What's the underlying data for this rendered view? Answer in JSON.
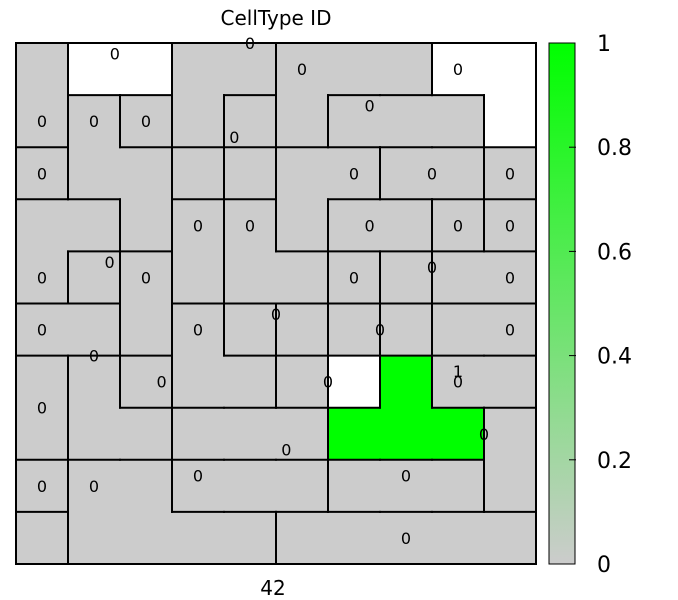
{
  "chart_data": {
    "type": "heatmap",
    "title": "CellType ID",
    "xlabel": "42",
    "grid_cols": 10,
    "grid_rows": 10,
    "cells": [
      {
        "label": "0",
        "lx": 1.9,
        "ly": 0.2,
        "value": 0,
        "color": "#ffffff",
        "squares": [
          [
            1,
            0
          ],
          [
            2,
            0
          ]
        ]
      },
      {
        "label": "0",
        "lx": 8.5,
        "ly": 0.5,
        "value": 0,
        "color": "#ffffff",
        "squares": [
          [
            8,
            0
          ],
          [
            9,
            0
          ],
          [
            9,
            1
          ]
        ]
      },
      {
        "label": "0",
        "lx": 4.5,
        "ly": 0.0,
        "value": 0,
        "color": "#cccccc",
        "squares": [
          [
            3,
            0
          ],
          [
            4,
            0
          ],
          [
            3,
            1
          ],
          [
            4,
            2
          ]
        ]
      },
      {
        "label": "0",
        "lx": 5.5,
        "ly": 0.5,
        "value": 0,
        "color": "#cccccc",
        "squares": [
          [
            5,
            0
          ],
          [
            6,
            0
          ],
          [
            7,
            0
          ],
          [
            5,
            1
          ]
        ]
      },
      {
        "label": "0",
        "lx": 6.8,
        "ly": 1.2,
        "value": 0,
        "color": "#cccccc",
        "squares": [
          [
            6,
            1
          ],
          [
            7,
            1
          ],
          [
            8,
            1
          ]
        ]
      },
      {
        "label": "0",
        "lx": 0.5,
        "ly": 1.5,
        "value": 0,
        "color": "#cccccc",
        "squares": [
          [
            0,
            0
          ],
          [
            0,
            1
          ]
        ]
      },
      {
        "label": "0",
        "lx": 1.5,
        "ly": 1.5,
        "value": 0,
        "color": "#cccccc",
        "squares": [
          [
            1,
            1
          ],
          [
            1,
            2
          ],
          [
            2,
            3
          ],
          [
            2,
            2
          ]
        ]
      },
      {
        "label": "0",
        "lx": 2.5,
        "ly": 1.5,
        "value": 0,
        "color": "#cccccc",
        "squares": [
          [
            2,
            1
          ],
          [
            3,
            2
          ]
        ]
      },
      {
        "label": "0",
        "lx": 4.2,
        "ly": 1.8,
        "value": 0,
        "color": "#cccccc",
        "squares": [
          [
            4,
            1
          ]
        ]
      },
      {
        "label": "0",
        "lx": 0.5,
        "ly": 2.5,
        "value": 0,
        "color": "#cccccc",
        "squares": [
          [
            0,
            2
          ]
        ]
      },
      {
        "label": "0",
        "lx": 6.5,
        "ly": 2.5,
        "value": 0,
        "color": "#cccccc",
        "squares": [
          [
            5,
            2
          ],
          [
            6,
            2
          ],
          [
            5,
            3
          ]
        ]
      },
      {
        "label": "0",
        "lx": 8.0,
        "ly": 2.5,
        "value": 0,
        "color": "#cccccc",
        "squares": [
          [
            7,
            2
          ],
          [
            8,
            2
          ]
        ]
      },
      {
        "label": "0",
        "lx": 9.5,
        "ly": 2.5,
        "value": 0,
        "color": "#cccccc",
        "squares": [
          [
            9,
            2
          ]
        ]
      },
      {
        "label": "0",
        "lx": 0.5,
        "ly": 4.5,
        "value": 0,
        "color": "#cccccc",
        "squares": [
          [
            0,
            3
          ],
          [
            1,
            3
          ],
          [
            0,
            4
          ]
        ]
      },
      {
        "label": "0",
        "lx": 3.5,
        "ly": 3.5,
        "value": 0,
        "color": "#cccccc",
        "squares": [
          [
            3,
            3
          ],
          [
            3,
            4
          ]
        ]
      },
      {
        "label": "0",
        "lx": 4.5,
        "ly": 3.5,
        "value": 0,
        "color": "#cccccc",
        "squares": [
          [
            4,
            3
          ],
          [
            4,
            4
          ],
          [
            5,
            4
          ]
        ]
      },
      {
        "label": "0",
        "lx": 6.8,
        "ly": 3.5,
        "value": 0,
        "color": "#cccccc",
        "squares": [
          [
            6,
            3
          ],
          [
            7,
            3
          ],
          [
            6,
            5
          ]
        ]
      },
      {
        "label": "0",
        "lx": 8.5,
        "ly": 3.5,
        "value": 0,
        "color": "#cccccc",
        "squares": [
          [
            8,
            3
          ]
        ]
      },
      {
        "label": "0",
        "lx": 9.5,
        "ly": 3.5,
        "value": 0,
        "color": "#cccccc",
        "squares": [
          [
            9,
            3
          ]
        ]
      },
      {
        "label": "0",
        "lx": 1.8,
        "ly": 4.2,
        "value": 0,
        "color": "#cccccc",
        "squares": [
          [
            1,
            4
          ]
        ]
      },
      {
        "label": "0",
        "lx": 2.5,
        "ly": 4.5,
        "value": 0,
        "color": "#cccccc",
        "squares": [
          [
            2,
            4
          ],
          [
            2,
            5
          ]
        ]
      },
      {
        "label": "0",
        "lx": 6.5,
        "ly": 4.5,
        "value": 0,
        "color": "#cccccc",
        "squares": [
          [
            6,
            4
          ]
        ]
      },
      {
        "label": "0",
        "lx": 8.0,
        "ly": 4.3,
        "value": 0,
        "color": "#cccccc",
        "squares": [
          [
            7,
            4
          ]
        ]
      },
      {
        "label": "0",
        "lx": 9.5,
        "ly": 4.5,
        "value": 0,
        "color": "#cccccc",
        "squares": [
          [
            8,
            4
          ],
          [
            9,
            4
          ]
        ]
      },
      {
        "label": "0",
        "lx": 0.5,
        "ly": 5.5,
        "value": 0,
        "color": "#cccccc",
        "squares": [
          [
            0,
            5
          ],
          [
            1,
            5
          ]
        ]
      },
      {
        "label": "0",
        "lx": 3.5,
        "ly": 5.5,
        "value": 0,
        "color": "#cccccc",
        "squares": [
          [
            3,
            5
          ],
          [
            3,
            6
          ],
          [
            4,
            6
          ]
        ]
      },
      {
        "label": "0",
        "lx": 5.0,
        "ly": 5.2,
        "value": 0,
        "color": "#cccccc",
        "squares": [
          [
            4,
            5
          ]
        ]
      },
      {
        "label": "0",
        "lx": 7.0,
        "ly": 5.5,
        "value": 0,
        "color": "#cccccc",
        "squares": [
          [
            5,
            5
          ],
          [
            7,
            5
          ]
        ]
      },
      {
        "label": "0",
        "lx": 9.5,
        "ly": 5.5,
        "value": 0,
        "color": "#cccccc",
        "squares": [
          [
            8,
            5
          ],
          [
            9,
            5
          ]
        ]
      },
      {
        "label": "0",
        "lx": 1.5,
        "ly": 6.0,
        "value": 0,
        "color": "#cccccc",
        "squares": [
          [
            1,
            6
          ],
          [
            1,
            7
          ],
          [
            2,
            7
          ]
        ]
      },
      {
        "label": "0",
        "lx": 0.5,
        "ly": 7.0,
        "value": 0,
        "color": "#cccccc",
        "squares": [
          [
            0,
            6
          ],
          [
            0,
            7
          ]
        ]
      },
      {
        "label": "0",
        "lx": 2.8,
        "ly": 6.5,
        "value": 0,
        "color": "#cccccc",
        "squares": [
          [
            2,
            6
          ]
        ]
      },
      {
        "label": "0",
        "lx": 6.0,
        "ly": 6.5,
        "value": 0,
        "color": "#cccccc",
        "squares": [
          [
            5,
            6
          ]
        ]
      },
      {
        "label": "1",
        "lx": 8.5,
        "ly": 6.3,
        "value": 1,
        "color": "#00ff00",
        "squares": [
          [
            7,
            6
          ],
          [
            6,
            7
          ],
          [
            7,
            7
          ],
          [
            8,
            7
          ]
        ]
      },
      {
        "label": "0",
        "lx": 8.5,
        "ly": 6.5,
        "value": 0,
        "color": "#cccccc",
        "squares": [
          [
            8,
            6
          ],
          [
            9,
            6
          ]
        ]
      },
      {
        "label": "0",
        "lx": 5.2,
        "ly": 7.8,
        "value": 0,
        "color": "#cccccc",
        "squares": [
          [
            3,
            7
          ],
          [
            4,
            7
          ],
          [
            5,
            7
          ]
        ]
      },
      {
        "label": "0",
        "lx": 9.0,
        "ly": 7.5,
        "value": 0,
        "color": "#cccccc",
        "squares": [
          [
            9,
            7
          ],
          [
            9,
            8
          ]
        ]
      },
      {
        "label": "0",
        "lx": 0.5,
        "ly": 8.5,
        "value": 0,
        "color": "#cccccc",
        "squares": [
          [
            0,
            8
          ]
        ]
      },
      {
        "label": "0",
        "lx": 1.5,
        "ly": 8.5,
        "value": 0,
        "color": "#cccccc",
        "squares": [
          [
            1,
            8
          ],
          [
            2,
            8
          ],
          [
            1,
            9
          ],
          [
            2,
            9
          ],
          [
            3,
            9
          ],
          [
            4,
            9
          ]
        ]
      },
      {
        "label": "0",
        "lx": 3.5,
        "ly": 8.3,
        "value": 0,
        "color": "#cccccc",
        "squares": [
          [
            3,
            8
          ],
          [
            4,
            8
          ],
          [
            5,
            8
          ]
        ]
      },
      {
        "label": "0",
        "lx": 7.5,
        "ly": 8.3,
        "value": 0,
        "color": "#cccccc",
        "squares": [
          [
            6,
            8
          ],
          [
            7,
            8
          ],
          [
            8,
            8
          ]
        ]
      },
      {
        "label": "0",
        "lx": 7.5,
        "ly": 9.5,
        "value": 0,
        "color": "#cccccc",
        "squares": [
          [
            0,
            9
          ],
          [
            5,
            9
          ],
          [
            6,
            9
          ],
          [
            7,
            9
          ],
          [
            8,
            9
          ],
          [
            9,
            9
          ]
        ]
      }
    ],
    "colorbar": {
      "min": 0,
      "max": 1,
      "low_color": "#cccccc",
      "high_color": "#00ff00",
      "ticks": [
        "0",
        "0.2",
        "0.4",
        "0.6",
        "0.8",
        "1"
      ]
    },
    "grid": false
  }
}
